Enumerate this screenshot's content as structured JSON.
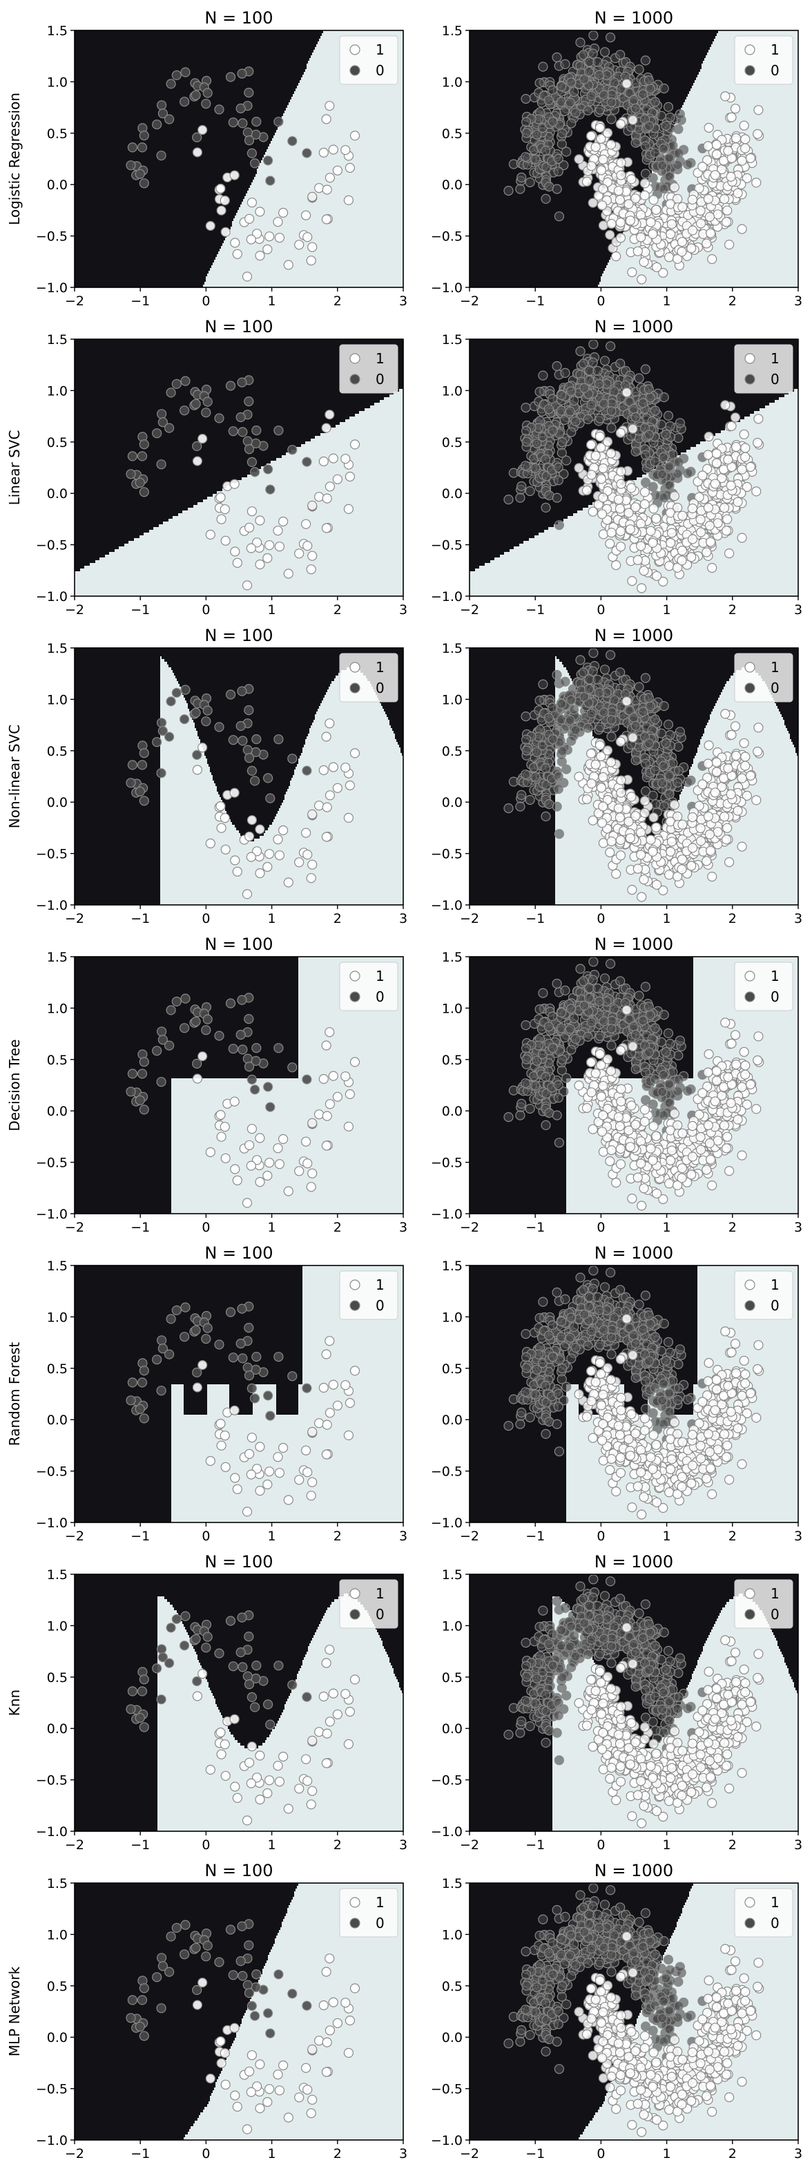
{
  "figure": {
    "rows": [
      "Logistic Regression",
      "Linear SVC",
      "Non-linear SVC",
      "Decision Tree",
      "Random Forest",
      "Knn",
      "MLP Network"
    ],
    "columns": [
      "N = 100",
      "N = 1000"
    ]
  },
  "colors": {
    "region_0": "#111116",
    "region_1": "#e2ecec",
    "point_0": "#4a4a4a",
    "point_1": "#ffffff",
    "point_edge": "#8a8a8a"
  },
  "chart_data": {
    "type": "scatter",
    "description_of_grid": "7 classifiers x 2 sample sizes",
    "xlim": [
      -2,
      3
    ],
    "ylim": [
      -1.0,
      1.5
    ],
    "x_ticks": [
      -2,
      -1,
      0,
      1,
      2,
      3
    ],
    "y_ticks": [
      -1.0,
      -0.5,
      0.0,
      0.5,
      1.0,
      1.5
    ],
    "x_tick_labels": [
      "−2",
      "−1",
      "0",
      "1",
      "2",
      "3"
    ],
    "y_tick_labels": [
      "−1.0",
      "−0.5",
      "0.0",
      "0.5",
      "1.0",
      "1.5"
    ],
    "legend": {
      "position": "top-right",
      "entries": [
        "1",
        "0"
      ]
    },
    "series": [
      {
        "name": "1",
        "color": "#ffffff",
        "shape": "lower moon, centers x 0..2, arc below"
      },
      {
        "name": "0",
        "color": "#4a4a4a",
        "shape": "upper moon, centers x -1..1, arc above"
      }
    ],
    "sample_sizes": [
      100,
      1000
    ],
    "noise": 0.18
  }
}
